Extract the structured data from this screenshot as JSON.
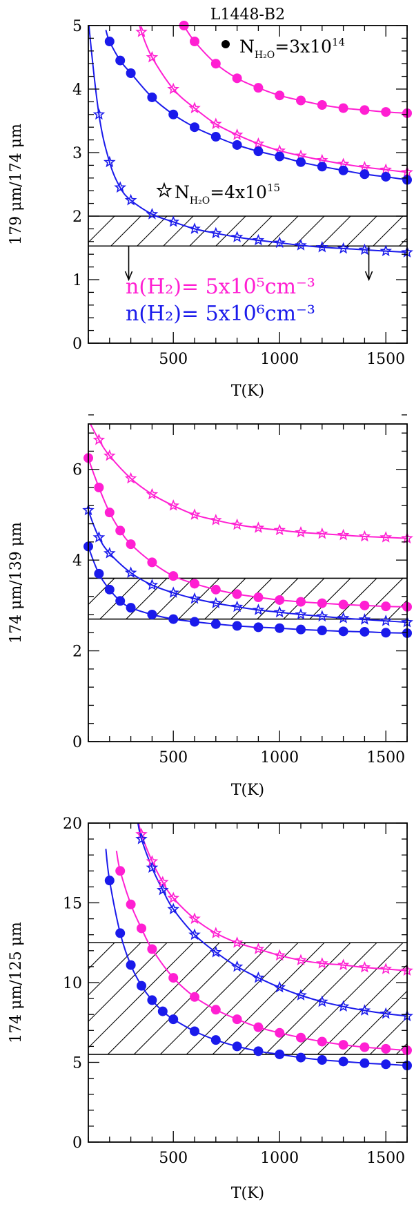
{
  "figure_title": "L1448-B2",
  "colors": {
    "magenta": "#ff1fd2",
    "blue": "#1a1aeb",
    "black": "#000000"
  },
  "chart_data": [
    {
      "type": "line",
      "title": "L1448-B2",
      "xlabel": "T(K)",
      "ylabel": "179 μm/174 μm",
      "xlim": [
        100,
        1600
      ],
      "ylim": [
        0,
        5
      ],
      "xticks": [
        500,
        1000,
        1500
      ],
      "yticks": [
        0,
        1,
        2,
        3,
        4,
        5
      ],
      "x_minor": 100,
      "y_minor": 0.2,
      "hatched_band": [
        1.53,
        2.0
      ],
      "upper_limit_arrows": {
        "x": [
          290,
          1420
        ],
        "y_from": 1.53,
        "y_to": 1.0
      },
      "annotations": [
        {
          "marker": "dot",
          "base": "N",
          "sub": "H₂O",
          "text": "=3x10",
          "sup": "14"
        },
        {
          "marker": "star",
          "base": "N",
          "sub": "H₂O",
          "text": "=4x10",
          "sup": "15"
        }
      ],
      "legend": [
        {
          "text": "n(H₂)= 5x10⁵cm⁻³",
          "color": "#ff1fd2"
        },
        {
          "text": "n(H₂)= 5x10⁶cm⁻³",
          "color": "#1a1aeb"
        }
      ],
      "series": [
        {
          "name": "n(H2)=5x10^5, N(H2O)=3x10^14",
          "color": "#ff1fd2",
          "marker": "dot",
          "x": [
            550,
            600,
            700,
            800,
            900,
            1000,
            1100,
            1200,
            1300,
            1400,
            1500,
            1600
          ],
          "y": [
            5.0,
            4.75,
            4.4,
            4.17,
            4.02,
            3.9,
            3.82,
            3.75,
            3.7,
            3.67,
            3.64,
            3.62
          ]
        },
        {
          "name": "n(H2)=5x10^5, N(H2O)=4x10^15",
          "color": "#ff1fd2",
          "marker": "star",
          "x": [
            350,
            400,
            500,
            600,
            700,
            800,
            900,
            1000,
            1100,
            1200,
            1300,
            1400,
            1500,
            1600
          ],
          "y": [
            4.9,
            4.5,
            4.0,
            3.7,
            3.45,
            3.28,
            3.14,
            3.03,
            2.95,
            2.88,
            2.82,
            2.77,
            2.73,
            2.69
          ]
        },
        {
          "name": "n(H2)=5x10^6, N(H2O)=3x10^14",
          "color": "#1a1aeb",
          "marker": "dot",
          "x": [
            200,
            250,
            300,
            400,
            500,
            600,
            700,
            800,
            900,
            1000,
            1100,
            1200,
            1300,
            1400,
            1500,
            1600
          ],
          "y": [
            4.75,
            4.45,
            4.25,
            3.87,
            3.6,
            3.4,
            3.25,
            3.12,
            3.02,
            2.94,
            2.85,
            2.78,
            2.72,
            2.66,
            2.62,
            2.57
          ]
        },
        {
          "name": "n(H2)=5x10^6, N(H2O)=4x10^15",
          "color": "#1a1aeb",
          "marker": "star",
          "x": [
            100,
            150,
            200,
            250,
            300,
            400,
            500,
            600,
            700,
            800,
            900,
            1000,
            1100,
            1200,
            1300,
            1400,
            1500,
            1600
          ],
          "y": [
            5.1,
            3.6,
            2.85,
            2.45,
            2.25,
            2.03,
            1.91,
            1.8,
            1.73,
            1.67,
            1.62,
            1.58,
            1.54,
            1.51,
            1.49,
            1.47,
            1.45,
            1.43
          ]
        }
      ]
    },
    {
      "type": "line",
      "title": "",
      "xlabel": "T(K)",
      "ylabel": "174 μm/139 μm",
      "xlim": [
        100,
        1600
      ],
      "ylim": [
        0,
        7
      ],
      "xticks": [
        500,
        1000,
        1500
      ],
      "yticks": [
        0,
        2,
        4,
        6
      ],
      "x_minor": 100,
      "y_minor": 0.4,
      "hatched_band": [
        2.7,
        3.6
      ],
      "series": [
        {
          "name": "n(H2)=5x10^5, N(H2O)=4x10^15",
          "color": "#ff1fd2",
          "marker": "star",
          "x": [
            100,
            150,
            200,
            300,
            400,
            500,
            600,
            700,
            800,
            900,
            1000,
            1100,
            1200,
            1300,
            1400,
            1500,
            1600
          ],
          "y": [
            7.1,
            6.65,
            6.3,
            5.8,
            5.45,
            5.2,
            5.0,
            4.88,
            4.78,
            4.71,
            4.66,
            4.61,
            4.58,
            4.55,
            4.52,
            4.5,
            4.48
          ]
        },
        {
          "name": "n(H2)=5x10^5, N(H2O)=3x10^14",
          "color": "#ff1fd2",
          "marker": "dot",
          "x": [
            100,
            150,
            200,
            250,
            300,
            400,
            500,
            600,
            700,
            800,
            900,
            1000,
            1100,
            1200,
            1300,
            1400,
            1500,
            1600
          ],
          "y": [
            6.25,
            5.6,
            5.05,
            4.65,
            4.35,
            3.95,
            3.65,
            3.48,
            3.35,
            3.25,
            3.18,
            3.12,
            3.08,
            3.05,
            3.02,
            3.0,
            2.98,
            2.97
          ]
        },
        {
          "name": "n(H2)=5x10^6, N(H2O)=4x10^15",
          "color": "#1a1aeb",
          "marker": "star",
          "x": [
            100,
            150,
            200,
            300,
            400,
            500,
            600,
            700,
            800,
            900,
            1000,
            1100,
            1200,
            1300,
            1400,
            1500,
            1600
          ],
          "y": [
            5.1,
            4.5,
            4.15,
            3.72,
            3.45,
            3.28,
            3.15,
            3.05,
            2.97,
            2.9,
            2.85,
            2.8,
            2.76,
            2.72,
            2.69,
            2.66,
            2.63
          ]
        },
        {
          "name": "n(H2)=5x10^6, N(H2O)=3x10^14",
          "color": "#1a1aeb",
          "marker": "dot",
          "x": [
            100,
            150,
            200,
            250,
            300,
            400,
            500,
            600,
            700,
            800,
            900,
            1000,
            1100,
            1200,
            1300,
            1400,
            1500,
            1600
          ],
          "y": [
            4.3,
            3.7,
            3.35,
            3.1,
            2.95,
            2.8,
            2.7,
            2.64,
            2.59,
            2.55,
            2.52,
            2.5,
            2.47,
            2.45,
            2.43,
            2.42,
            2.4,
            2.39
          ]
        }
      ]
    },
    {
      "type": "line",
      "title": "",
      "xlabel": "T(K)",
      "ylabel": "174 μm/125 μm",
      "xlim": [
        100,
        1600
      ],
      "ylim": [
        0,
        20
      ],
      "xticks": [
        500,
        1000,
        1500
      ],
      "yticks": [
        0,
        5,
        10,
        15,
        20
      ],
      "x_minor": 100,
      "y_minor": 1,
      "hatched_band": [
        5.5,
        12.5
      ],
      "series": [
        {
          "name": "n(H2)=5x10^5, N(H2O)=4x10^15",
          "color": "#ff1fd2",
          "marker": "star",
          "x": [
            350,
            400,
            450,
            500,
            600,
            700,
            800,
            900,
            1000,
            1100,
            1200,
            1300,
            1400,
            1500,
            1600
          ],
          "y": [
            19.3,
            17.6,
            16.3,
            15.3,
            14.0,
            13.1,
            12.5,
            12.1,
            11.7,
            11.4,
            11.2,
            11.1,
            10.95,
            10.85,
            10.75
          ]
        },
        {
          "name": "n(H2)=5x10^5, N(H2O)=3x10^14",
          "color": "#ff1fd2",
          "marker": "dot",
          "x": [
            250,
            300,
            350,
            400,
            500,
            600,
            700,
            800,
            900,
            1000,
            1100,
            1200,
            1300,
            1400,
            1500,
            1600
          ],
          "y": [
            17.0,
            14.9,
            13.4,
            12.1,
            10.3,
            9.1,
            8.3,
            7.7,
            7.2,
            6.85,
            6.55,
            6.3,
            6.1,
            5.95,
            5.85,
            5.75
          ]
        },
        {
          "name": "n(H2)=5x10^6, N(H2O)=4x10^15",
          "color": "#1a1aeb",
          "marker": "star",
          "x": [
            350,
            400,
            450,
            500,
            600,
            700,
            800,
            900,
            1000,
            1100,
            1200,
            1300,
            1400,
            1500,
            1600
          ],
          "y": [
            19.0,
            17.2,
            15.8,
            14.6,
            13.0,
            11.9,
            11.0,
            10.3,
            9.7,
            9.2,
            8.8,
            8.5,
            8.25,
            8.05,
            7.9
          ]
        },
        {
          "name": "n(H2)=5x10^6, N(H2O)=3x10^14",
          "color": "#1a1aeb",
          "marker": "dot",
          "x": [
            200,
            250,
            300,
            350,
            400,
            450,
            500,
            600,
            700,
            800,
            900,
            1000,
            1100,
            1200,
            1300,
            1400,
            1500,
            1600
          ],
          "y": [
            16.4,
            13.1,
            11.1,
            9.8,
            8.9,
            8.2,
            7.7,
            6.95,
            6.4,
            6.0,
            5.7,
            5.5,
            5.3,
            5.15,
            5.05,
            4.95,
            4.88,
            4.8
          ]
        }
      ]
    }
  ]
}
